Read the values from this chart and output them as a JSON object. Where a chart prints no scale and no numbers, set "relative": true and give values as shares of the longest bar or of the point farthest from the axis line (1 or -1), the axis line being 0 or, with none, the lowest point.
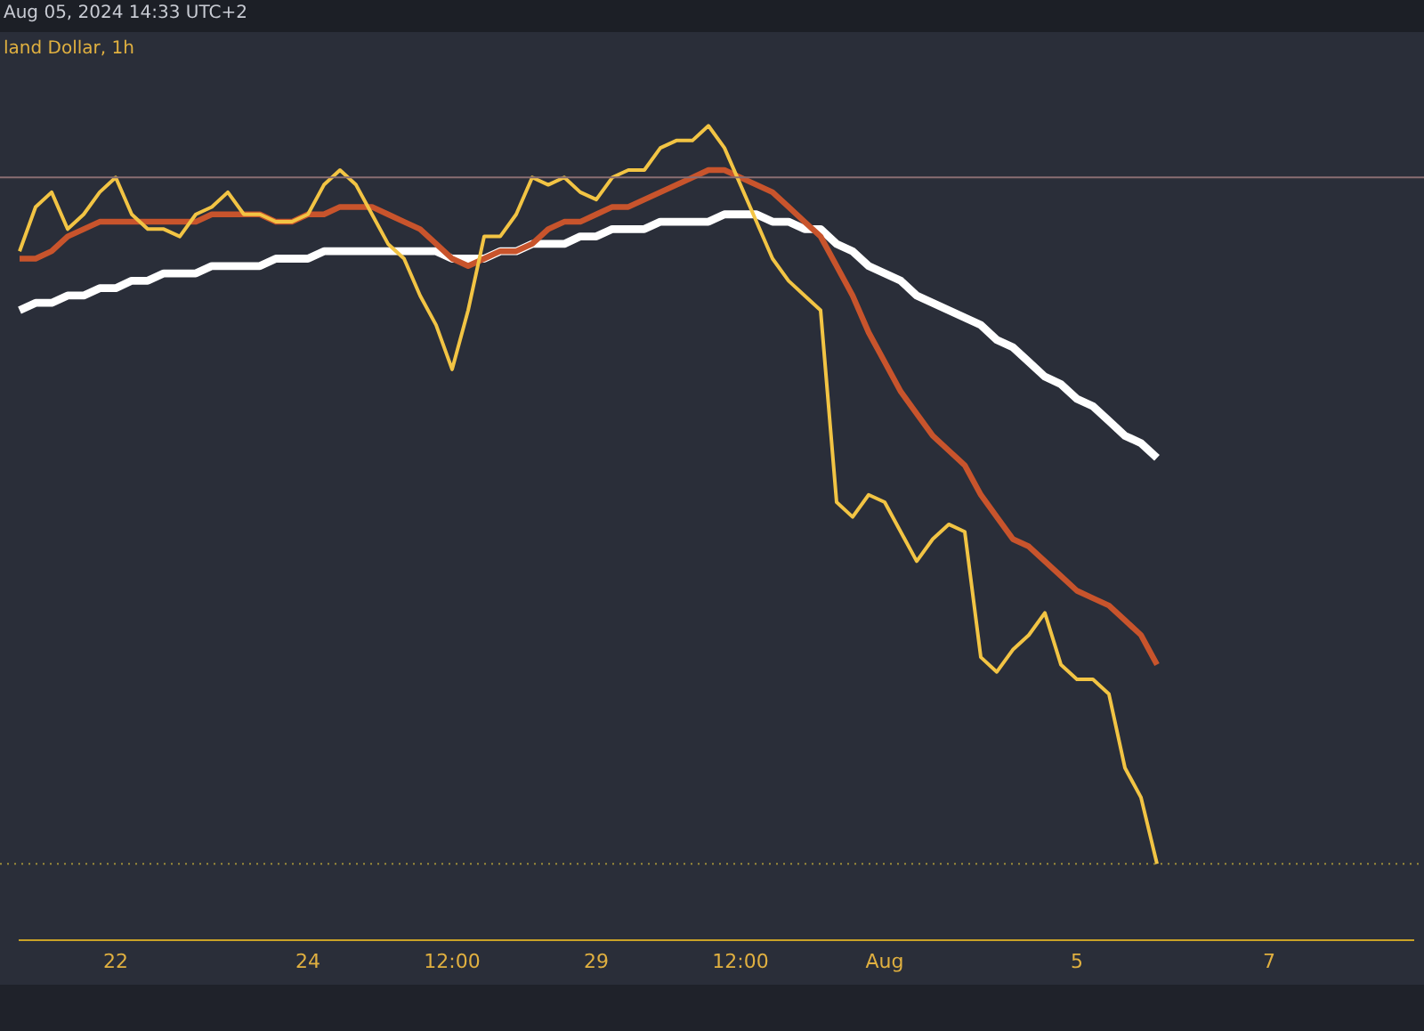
{
  "chart_data": {
    "type": "line",
    "title": "land Dollar, 1h",
    "subtitle": "Aug 05, 2024 14:33 UTC+2",
    "relative": true,
    "legend": false,
    "grid": false,
    "marker": "none",
    "categories": [
      null,
      null,
      null,
      null,
      null,
      null,
      "22",
      null,
      null,
      null,
      null,
      null,
      null,
      null,
      null,
      null,
      null,
      null,
      "24",
      null,
      null,
      null,
      null,
      null,
      null,
      null,
      null,
      "12:00",
      null,
      null,
      null,
      null,
      null,
      null,
      null,
      null,
      "29",
      null,
      null,
      null,
      null,
      null,
      null,
      null,
      null,
      "12:00",
      null,
      null,
      null,
      null,
      null,
      null,
      null,
      null,
      "Aug",
      null,
      null,
      null,
      null,
      null,
      null,
      null,
      null,
      null,
      null,
      null,
      "5",
      null,
      null,
      null,
      null,
      null,
      null,
      null,
      null,
      null,
      null,
      null,
      "7",
      null,
      null,
      null,
      null,
      null,
      null,
      null,
      null,
      null
    ],
    "series": [
      {
        "color": "#f2c444",
        "values": [
          0.83,
          0.89,
          0.91,
          0.86,
          0.88,
          0.91,
          0.93,
          0.88,
          0.86,
          0.86,
          0.85,
          0.88,
          0.89,
          0.91,
          0.88,
          0.88,
          0.87,
          0.87,
          0.88,
          0.92,
          0.94,
          0.92,
          0.88,
          0.84,
          0.82,
          0.77,
          0.73,
          0.67,
          0.75,
          0.85,
          0.85,
          0.88,
          0.93,
          0.92,
          0.93,
          0.91,
          0.9,
          0.93,
          0.94,
          0.94,
          0.97,
          0.98,
          0.98,
          1,
          0.97,
          0.92,
          0.87,
          0.82,
          0.79,
          0.77,
          0.75,
          0.49,
          0.47,
          0.5,
          0.49,
          0.45,
          0.41,
          0.44,
          0.46,
          0.45,
          0.28,
          0.26,
          0.29,
          0.31,
          0.34,
          0.27,
          0.25,
          0.25,
          0.23,
          0.13,
          0.09,
          0,
          null,
          null,
          null,
          null,
          null,
          null,
          null,
          null,
          null,
          null,
          null,
          null,
          null,
          null,
          null,
          null
        ]
      },
      {
        "color": "#c8542c",
        "values": [
          0.82,
          0.82,
          0.83,
          0.85,
          0.86,
          0.87,
          0.87,
          0.87,
          0.87,
          0.87,
          0.87,
          0.87,
          0.88,
          0.88,
          0.88,
          0.88,
          0.87,
          0.87,
          0.88,
          0.88,
          0.89,
          0.89,
          0.89,
          0.88,
          0.87,
          0.86,
          0.84,
          0.82,
          0.81,
          0.82,
          0.83,
          0.83,
          0.84,
          0.86,
          0.87,
          0.87,
          0.88,
          0.89,
          0.89,
          0.9,
          0.91,
          0.92,
          0.93,
          0.94,
          0.94,
          0.93,
          0.92,
          0.91,
          0.89,
          0.87,
          0.85,
          0.81,
          0.77,
          0.72,
          0.68,
          0.64,
          0.61,
          0.58,
          0.56,
          0.54,
          0.5,
          0.47,
          0.44,
          0.43,
          0.41,
          0.39,
          0.37,
          0.36,
          0.35,
          0.33,
          0.31,
          0.27,
          null,
          null,
          null,
          null,
          null,
          null,
          null,
          null,
          null,
          null,
          null,
          null,
          null,
          null,
          null,
          null
        ]
      },
      {
        "color": "#ffffff",
        "values": [
          0.75,
          0.76,
          0.76,
          0.77,
          0.77,
          0.78,
          0.78,
          0.79,
          0.79,
          0.8,
          0.8,
          0.8,
          0.81,
          0.81,
          0.81,
          0.81,
          0.82,
          0.82,
          0.82,
          0.83,
          0.83,
          0.83,
          0.83,
          0.83,
          0.83,
          0.83,
          0.83,
          0.82,
          0.82,
          0.82,
          0.83,
          0.83,
          0.84,
          0.84,
          0.84,
          0.85,
          0.85,
          0.86,
          0.86,
          0.86,
          0.87,
          0.87,
          0.87,
          0.87,
          0.88,
          0.88,
          0.88,
          0.87,
          0.87,
          0.86,
          0.86,
          0.84,
          0.83,
          0.81,
          0.8,
          0.79,
          0.77,
          0.76,
          0.75,
          0.74,
          0.73,
          0.71,
          0.7,
          0.68,
          0.66,
          0.65,
          0.63,
          0.62,
          0.6,
          0.58,
          0.57,
          0.55,
          null,
          null,
          null,
          null,
          null,
          null,
          null,
          null,
          null,
          null,
          null,
          null,
          null,
          null,
          null,
          null
        ]
      }
    ],
    "ref_lines": [
      {
        "axis": "y",
        "value": 0.93,
        "color": "#8a6e72",
        "line_style": "solid"
      },
      {
        "axis": "y",
        "value": 0,
        "color": "#9a8a3a",
        "line_style": "dotted"
      }
    ]
  }
}
